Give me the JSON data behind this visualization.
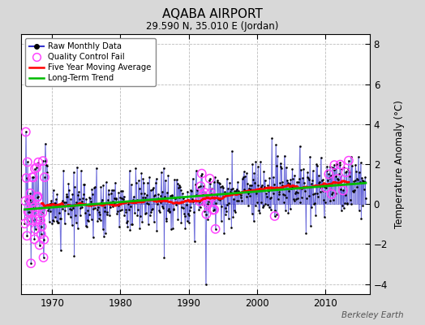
{
  "title": "AQABA AIRPORT",
  "subtitle": "29.590 N, 35.010 E (Jordan)",
  "ylabel": "Temperature Anomaly (°C)",
  "watermark": "Berkeley Earth",
  "xlim": [
    1965.5,
    2016.5
  ],
  "ylim": [
    -4.5,
    8.5
  ],
  "yticks": [
    -4,
    -2,
    0,
    2,
    4,
    6,
    8
  ],
  "xticks": [
    1970,
    1980,
    1990,
    2000,
    2010
  ],
  "bg_color": "#d8d8d8",
  "plot_bg_color": "#ffffff",
  "grid_color": "#bbbbbb",
  "raw_line_color": "#3333cc",
  "raw_dot_color": "#000000",
  "qc_fail_color": "#ff44ff",
  "ma_color": "#ff0000",
  "trend_color": "#00bb00",
  "seed": 17
}
